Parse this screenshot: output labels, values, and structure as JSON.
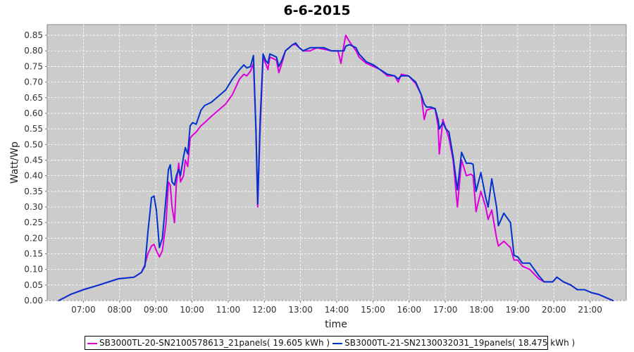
{
  "chart_data": {
    "type": "line",
    "title": "6-6-2015",
    "xlabel": "time",
    "ylabel": "Watt/Wp",
    "xlim": [
      "06:00",
      "22:00"
    ],
    "ylim": [
      0,
      0.884
    ],
    "xticks": [
      "07:00",
      "08:00",
      "09:00",
      "10:00",
      "11:00",
      "12:00",
      "13:00",
      "14:00",
      "15:00",
      "16:00",
      "17:00",
      "18:00",
      "19:00",
      "20:00",
      "21:00"
    ],
    "yticks": [
      "0.00",
      "0.05",
      "0.10",
      "0.15",
      "0.20",
      "0.25",
      "0.30",
      "0.35",
      "0.40",
      "0.45",
      "0.50",
      "0.55",
      "0.60",
      "0.65",
      "0.70",
      "0.75",
      "0.80",
      "0.85"
    ],
    "grid": true,
    "legend_position": "bottom",
    "background": "#cccccc",
    "x": [
      "06:19",
      "06:39",
      "07:00",
      "07:26",
      "07:58",
      "08:24",
      "08:36",
      "08:42",
      "08:47",
      "08:53",
      "08:57",
      "09:01",
      "09:06",
      "09:11",
      "09:17",
      "09:21",
      "09:24",
      "09:27",
      "09:31",
      "09:34",
      "09:38",
      "09:41",
      "09:46",
      "09:49",
      "09:53",
      "09:57",
      "10:01",
      "10:07",
      "10:15",
      "10:21",
      "10:32",
      "10:44",
      "10:56",
      "11:07",
      "11:19",
      "11:26",
      "11:31",
      "11:37",
      "11:42",
      "11:46",
      "11:49",
      "11:53",
      "11:58",
      "12:02",
      "12:06",
      "12:09",
      "12:15",
      "12:20",
      "12:24",
      "12:29",
      "12:35",
      "12:41",
      "12:47",
      "12:52",
      "12:58",
      "13:04",
      "13:16",
      "13:27",
      "13:39",
      "13:51",
      "14:02",
      "14:07",
      "14:12",
      "14:15",
      "14:21",
      "14:32",
      "14:37",
      "14:49",
      "15:01",
      "15:12",
      "15:24",
      "15:36",
      "15:42",
      "15:47",
      "15:59",
      "16:11",
      "16:20",
      "16:25",
      "16:29",
      "16:36",
      "16:43",
      "16:48",
      "16:50",
      "16:56",
      "17:01",
      "17:06",
      "17:13",
      "17:20",
      "17:27",
      "17:35",
      "17:42",
      "17:46",
      "17:51",
      "17:59",
      "18:07",
      "18:11",
      "18:17",
      "18:25",
      "18:28",
      "18:37",
      "18:48",
      "18:54",
      "19:00",
      "19:08",
      "19:20",
      "19:35",
      "19:44",
      "19:58",
      "20:05",
      "20:16",
      "20:28",
      "20:39",
      "20:51",
      "21:03",
      "21:14",
      "21:26",
      "21:38"
    ],
    "series": [
      {
        "name": "SB3000TL-20-SN2100578613_21panels( 19.605 kWh )",
        "color": "#dd00dd",
        "values": [
          0.0,
          0.02,
          0.035,
          0.05,
          0.07,
          0.075,
          0.09,
          0.115,
          0.15,
          0.175,
          0.18,
          0.16,
          0.14,
          0.16,
          0.25,
          0.38,
          0.37,
          0.3,
          0.25,
          0.37,
          0.44,
          0.38,
          0.4,
          0.45,
          0.43,
          0.52,
          0.53,
          0.54,
          0.56,
          0.57,
          0.59,
          0.61,
          0.63,
          0.66,
          0.71,
          0.725,
          0.72,
          0.735,
          0.76,
          0.55,
          0.3,
          0.55,
          0.78,
          0.76,
          0.74,
          0.78,
          0.775,
          0.77,
          0.73,
          0.76,
          0.8,
          0.81,
          0.82,
          0.82,
          0.81,
          0.8,
          0.8,
          0.81,
          0.805,
          0.8,
          0.8,
          0.76,
          0.82,
          0.85,
          0.83,
          0.8,
          0.78,
          0.76,
          0.75,
          0.74,
          0.72,
          0.72,
          0.7,
          0.725,
          0.72,
          0.695,
          0.66,
          0.58,
          0.61,
          0.615,
          0.615,
          0.56,
          0.47,
          0.58,
          0.55,
          0.52,
          0.45,
          0.3,
          0.45,
          0.4,
          0.405,
          0.4,
          0.285,
          0.35,
          0.3,
          0.26,
          0.29,
          0.2,
          0.175,
          0.19,
          0.17,
          0.13,
          0.13,
          0.11,
          0.1,
          0.07,
          0.06,
          0.06,
          0.075,
          0.06,
          0.05,
          0.035,
          0.035,
          0.025,
          0.02,
          0.01,
          0.0
        ]
      },
      {
        "name": "SB3000TL-21-SN2130032031_19panels( 18.475 kWh )",
        "color": "#0033cc",
        "values": [
          0.0,
          0.02,
          0.035,
          0.05,
          0.07,
          0.075,
          0.09,
          0.11,
          0.22,
          0.33,
          0.335,
          0.29,
          0.17,
          0.2,
          0.33,
          0.42,
          0.435,
          0.38,
          0.37,
          0.4,
          0.42,
          0.4,
          0.46,
          0.49,
          0.47,
          0.56,
          0.57,
          0.565,
          0.61,
          0.625,
          0.635,
          0.655,
          0.675,
          0.71,
          0.74,
          0.755,
          0.745,
          0.75,
          0.785,
          0.55,
          0.31,
          0.58,
          0.79,
          0.77,
          0.76,
          0.79,
          0.785,
          0.78,
          0.75,
          0.77,
          0.8,
          0.81,
          0.82,
          0.825,
          0.81,
          0.8,
          0.81,
          0.81,
          0.81,
          0.8,
          0.8,
          0.8,
          0.8,
          0.815,
          0.82,
          0.81,
          0.79,
          0.765,
          0.755,
          0.74,
          0.725,
          0.72,
          0.71,
          0.72,
          0.72,
          0.7,
          0.66,
          0.63,
          0.62,
          0.62,
          0.615,
          0.58,
          0.55,
          0.57,
          0.55,
          0.54,
          0.46,
          0.355,
          0.475,
          0.44,
          0.44,
          0.437,
          0.35,
          0.41,
          0.33,
          0.3,
          0.39,
          0.3,
          0.24,
          0.28,
          0.25,
          0.145,
          0.14,
          0.12,
          0.12,
          0.08,
          0.06,
          0.06,
          0.075,
          0.06,
          0.05,
          0.035,
          0.035,
          0.025,
          0.02,
          0.01,
          0.0
        ]
      }
    ]
  }
}
